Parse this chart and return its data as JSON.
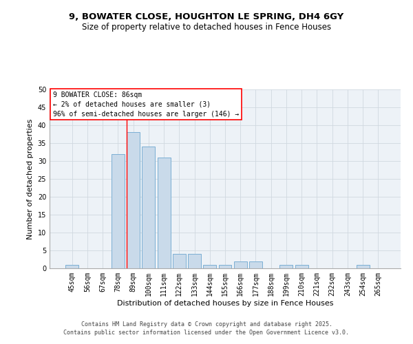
{
  "title": "9, BOWATER CLOSE, HOUGHTON LE SPRING, DH4 6GY",
  "subtitle": "Size of property relative to detached houses in Fence Houses",
  "xlabel": "Distribution of detached houses by size in Fence Houses",
  "ylabel": "Number of detached properties",
  "categories": [
    "45sqm",
    "56sqm",
    "67sqm",
    "78sqm",
    "89sqm",
    "100sqm",
    "111sqm",
    "122sqm",
    "133sqm",
    "144sqm",
    "155sqm",
    "166sqm",
    "177sqm",
    "188sqm",
    "199sqm",
    "210sqm",
    "221sqm",
    "232sqm",
    "243sqm",
    "254sqm",
    "265sqm"
  ],
  "values": [
    1,
    0,
    0,
    32,
    38,
    34,
    31,
    4,
    4,
    1,
    1,
    2,
    2,
    0,
    1,
    1,
    0,
    0,
    0,
    1,
    0
  ],
  "bar_color": "#c9daea",
  "bar_edge_color": "#7bafd4",
  "bar_width": 0.85,
  "red_line_x": 3.58,
  "annotation_text": "9 BOWATER CLOSE: 86sqm\n← 2% of detached houses are smaller (3)\n96% of semi-detached houses are larger (146) →",
  "annotation_box_color": "white",
  "annotation_box_edge_color": "red",
  "ylim": [
    0,
    50
  ],
  "yticks": [
    0,
    5,
    10,
    15,
    20,
    25,
    30,
    35,
    40,
    45,
    50
  ],
  "grid_color": "#d0d8e0",
  "background_color": "#edf2f7",
  "footer_text": "Contains HM Land Registry data © Crown copyright and database right 2025.\nContains public sector information licensed under the Open Government Licence v3.0.",
  "title_fontsize": 9.5,
  "subtitle_fontsize": 8.5,
  "xlabel_fontsize": 8,
  "ylabel_fontsize": 8,
  "tick_fontsize": 7,
  "annotation_fontsize": 7,
  "footer_fontsize": 6
}
